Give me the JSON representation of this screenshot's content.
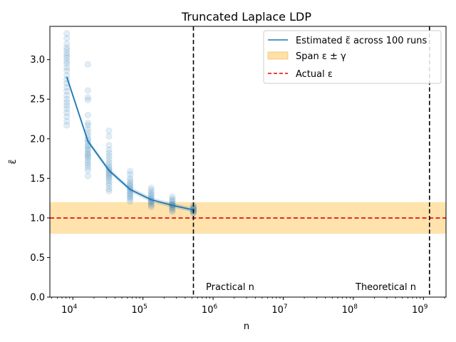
{
  "chart_data": {
    "type": "line",
    "title": "Truncated Laplace LDP",
    "xlabel": "n",
    "ylabel": "ε̃",
    "x_scale": "log",
    "xlim": [
      4700,
      2100000000
    ],
    "ylim": [
      0,
      3.42
    ],
    "y_ticks": [
      "0.0",
      "0.5",
      "1.0",
      "1.5",
      "2.0",
      "2.5",
      "3.0"
    ],
    "x_ticks": [
      {
        "base": "10",
        "exp": "4",
        "value": 10000
      },
      {
        "base": "10",
        "exp": "5",
        "value": 100000
      },
      {
        "base": "10",
        "exp": "6",
        "value": 1000000
      },
      {
        "base": "10",
        "exp": "7",
        "value": 10000000
      },
      {
        "base": "10",
        "exp": "8",
        "value": 100000000
      },
      {
        "base": "10",
        "exp": "9",
        "value": 1000000000
      }
    ],
    "series": [
      {
        "name": "Estimated ε̃ across 100 runs",
        "color": "#1f77b4",
        "x": [
          8192,
          16384,
          32768,
          65536,
          131072,
          262144,
          524288
        ],
        "y": [
          2.78,
          1.97,
          1.6,
          1.36,
          1.23,
          1.16,
          1.1
        ]
      }
    ],
    "scatter_runs": [
      {
        "x": 8192,
        "y": [
          3.33,
          3.27,
          3.2,
          3.15,
          3.12,
          3.08,
          3.05,
          3.02,
          2.98,
          2.95,
          2.9,
          2.86,
          2.8,
          2.75,
          2.7,
          2.65,
          2.6,
          2.55,
          2.5,
          2.46,
          2.42,
          2.38,
          2.33,
          2.28,
          2.22,
          2.17
        ]
      },
      {
        "x": 16384,
        "y": [
          2.94,
          2.61,
          2.52,
          2.49,
          2.3,
          2.2,
          2.17,
          2.12,
          2.08,
          2.04,
          2.0,
          1.98,
          1.95,
          1.92,
          1.9,
          1.87,
          1.85,
          1.82,
          1.8,
          1.78,
          1.76,
          1.73,
          1.7,
          1.67,
          1.64,
          1.6,
          1.53
        ]
      },
      {
        "x": 32768,
        "y": [
          2.1,
          2.03,
          1.92,
          1.86,
          1.82,
          1.78,
          1.74,
          1.7,
          1.67,
          1.64,
          1.62,
          1.6,
          1.58,
          1.56,
          1.54,
          1.52,
          1.5,
          1.47,
          1.44,
          1.41,
          1.37,
          1.34
        ]
      },
      {
        "x": 65536,
        "y": [
          1.59,
          1.55,
          1.5,
          1.47,
          1.44,
          1.42,
          1.4,
          1.38,
          1.36,
          1.34,
          1.32,
          1.3,
          1.28,
          1.26,
          1.24,
          1.21
        ]
      },
      {
        "x": 131072,
        "y": [
          1.38,
          1.35,
          1.32,
          1.3,
          1.28,
          1.26,
          1.24,
          1.22,
          1.21,
          1.2,
          1.18,
          1.16,
          1.14
        ]
      },
      {
        "x": 262144,
        "y": [
          1.27,
          1.24,
          1.22,
          1.2,
          1.18,
          1.17,
          1.16,
          1.15,
          1.13,
          1.12,
          1.1,
          1.08
        ]
      },
      {
        "x": 524288,
        "y": [
          1.16,
          1.14,
          1.13,
          1.12,
          1.11,
          1.1,
          1.09,
          1.08,
          1.07,
          1.06
        ]
      }
    ],
    "band": {
      "name": "Span ε ± γ",
      "ymin": 0.8,
      "ymax": 1.2,
      "color": "#ffe0a8"
    },
    "hline": {
      "name": "Actual ε",
      "y": 1.0,
      "color": "#e00000",
      "style": "dashed"
    },
    "vlines": [
      {
        "x": 524288,
        "label": "Practical n"
      },
      {
        "x": 1220000000,
        "label": "Theoretical n"
      }
    ],
    "legend_placement": "top-right",
    "grid": false
  }
}
